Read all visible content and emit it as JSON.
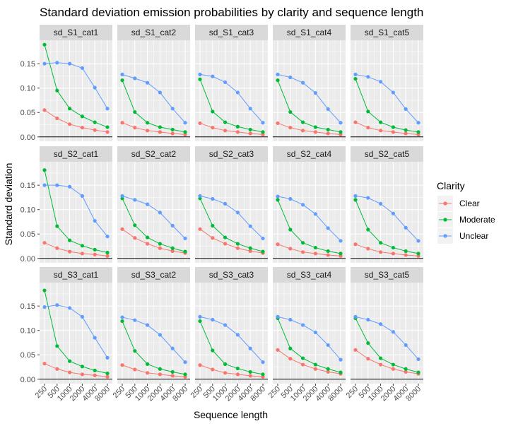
{
  "chart_data": {
    "type": "line",
    "title": "Standard deviation emission probabilities by clarity and sequence length",
    "xlabel": "Sequence length",
    "ylabel": "Standard deviation",
    "x": [
      250,
      500,
      1000,
      2000,
      4000,
      8000
    ],
    "x_tick_labels": [
      "250",
      "500",
      "1000",
      "2000",
      "4000",
      "8000"
    ],
    "y_ticks": [
      0.0,
      0.05,
      0.1,
      0.15
    ],
    "y_tick_labels": [
      "0.00",
      "0.05",
      "0.10",
      "0.15"
    ],
    "ylim": [
      -0.009,
      0.198
    ],
    "hline": 0,
    "grid": true,
    "facet_rows": 3,
    "facet_cols": 5,
    "legend": {
      "title": "Clarity",
      "position": "right",
      "entries": [
        {
          "name": "Clear",
          "color": "#F8766D"
        },
        {
          "name": "Moderate",
          "color": "#00BA38"
        },
        {
          "name": "Unclear",
          "color": "#619CFF"
        }
      ]
    },
    "panels": [
      {
        "label": "sd_S1_cat1",
        "series": {
          "Clear": [
            0.055,
            0.038,
            0.026,
            0.019,
            0.014,
            0.01
          ],
          "Moderate": [
            0.189,
            0.095,
            0.058,
            0.042,
            0.03,
            0.02
          ],
          "Unclear": [
            0.15,
            0.152,
            0.15,
            0.141,
            0.101,
            0.058
          ]
        }
      },
      {
        "label": "sd_S1_cat2",
        "series": {
          "Clear": [
            0.029,
            0.019,
            0.013,
            0.01,
            0.007,
            0.005
          ],
          "Moderate": [
            0.116,
            0.051,
            0.029,
            0.02,
            0.015,
            0.01
          ],
          "Unclear": [
            0.128,
            0.12,
            0.111,
            0.091,
            0.058,
            0.029
          ]
        }
      },
      {
        "label": "sd_S1_cat3",
        "series": {
          "Clear": [
            0.028,
            0.019,
            0.013,
            0.01,
            0.007,
            0.005
          ],
          "Moderate": [
            0.118,
            0.052,
            0.03,
            0.021,
            0.015,
            0.01
          ],
          "Unclear": [
            0.128,
            0.124,
            0.112,
            0.091,
            0.058,
            0.029
          ]
        }
      },
      {
        "label": "sd_S1_cat4",
        "series": {
          "Clear": [
            0.028,
            0.019,
            0.013,
            0.01,
            0.007,
            0.005
          ],
          "Moderate": [
            0.116,
            0.051,
            0.03,
            0.02,
            0.015,
            0.01
          ],
          "Unclear": [
            0.128,
            0.122,
            0.111,
            0.09,
            0.057,
            0.029
          ]
        }
      },
      {
        "label": "sd_S1_cat5",
        "series": {
          "Clear": [
            0.03,
            0.019,
            0.013,
            0.01,
            0.007,
            0.005
          ],
          "Moderate": [
            0.119,
            0.052,
            0.03,
            0.02,
            0.014,
            0.01
          ],
          "Unclear": [
            0.128,
            0.123,
            0.113,
            0.091,
            0.057,
            0.029
          ]
        }
      },
      {
        "label": "sd_S2_cat1",
        "series": {
          "Clear": [
            0.032,
            0.021,
            0.014,
            0.01,
            0.008,
            0.005
          ],
          "Moderate": [
            0.181,
            0.066,
            0.037,
            0.026,
            0.018,
            0.012
          ],
          "Unclear": [
            0.15,
            0.15,
            0.147,
            0.128,
            0.077,
            0.045
          ]
        }
      },
      {
        "label": "sd_S2_cat2",
        "series": {
          "Clear": [
            0.06,
            0.042,
            0.03,
            0.021,
            0.015,
            0.011
          ],
          "Moderate": [
            0.123,
            0.068,
            0.043,
            0.03,
            0.021,
            0.014
          ],
          "Unclear": [
            0.128,
            0.12,
            0.111,
            0.094,
            0.067,
            0.041
          ]
        }
      },
      {
        "label": "sd_S2_cat3",
        "series": {
          "Clear": [
            0.06,
            0.042,
            0.03,
            0.021,
            0.015,
            0.011
          ],
          "Moderate": [
            0.123,
            0.067,
            0.043,
            0.03,
            0.021,
            0.014
          ],
          "Unclear": [
            0.128,
            0.122,
            0.112,
            0.094,
            0.066,
            0.041
          ]
        }
      },
      {
        "label": "sd_S2_cat4",
        "series": {
          "Clear": [
            0.029,
            0.02,
            0.013,
            0.01,
            0.007,
            0.005
          ],
          "Moderate": [
            0.12,
            0.059,
            0.032,
            0.022,
            0.015,
            0.01
          ],
          "Unclear": [
            0.127,
            0.122,
            0.11,
            0.091,
            0.062,
            0.036
          ]
        }
      },
      {
        "label": "sd_S2_cat5",
        "series": {
          "Clear": [
            0.029,
            0.02,
            0.013,
            0.01,
            0.007,
            0.005
          ],
          "Moderate": [
            0.12,
            0.059,
            0.032,
            0.022,
            0.015,
            0.01
          ],
          "Unclear": [
            0.128,
            0.124,
            0.112,
            0.092,
            0.063,
            0.036
          ]
        }
      },
      {
        "label": "sd_S3_cat1",
        "series": {
          "Clear": [
            0.032,
            0.021,
            0.014,
            0.01,
            0.008,
            0.005
          ],
          "Moderate": [
            0.182,
            0.068,
            0.037,
            0.026,
            0.018,
            0.012
          ],
          "Unclear": [
            0.148,
            0.152,
            0.146,
            0.128,
            0.085,
            0.044
          ]
        }
      },
      {
        "label": "sd_S3_cat2",
        "series": {
          "Clear": [
            0.029,
            0.02,
            0.013,
            0.01,
            0.007,
            0.005
          ],
          "Moderate": [
            0.119,
            0.058,
            0.031,
            0.021,
            0.015,
            0.01
          ],
          "Unclear": [
            0.127,
            0.121,
            0.111,
            0.091,
            0.063,
            0.035
          ]
        }
      },
      {
        "label": "sd_S3_cat3",
        "series": {
          "Clear": [
            0.029,
            0.02,
            0.013,
            0.01,
            0.007,
            0.005
          ],
          "Moderate": [
            0.119,
            0.059,
            0.031,
            0.022,
            0.015,
            0.01
          ],
          "Unclear": [
            0.128,
            0.122,
            0.111,
            0.091,
            0.063,
            0.035
          ]
        }
      },
      {
        "label": "sd_S3_cat4",
        "series": {
          "Clear": [
            0.06,
            0.042,
            0.03,
            0.021,
            0.015,
            0.011
          ],
          "Moderate": [
            0.125,
            0.063,
            0.043,
            0.03,
            0.021,
            0.014
          ],
          "Unclear": [
            0.128,
            0.122,
            0.111,
            0.096,
            0.07,
            0.04
          ]
        }
      },
      {
        "label": "sd_S3_cat5",
        "series": {
          "Clear": [
            0.06,
            0.042,
            0.03,
            0.021,
            0.015,
            0.011
          ],
          "Moderate": [
            0.125,
            0.074,
            0.043,
            0.03,
            0.021,
            0.014
          ],
          "Unclear": [
            0.128,
            0.122,
            0.113,
            0.097,
            0.07,
            0.041
          ]
        }
      }
    ]
  }
}
